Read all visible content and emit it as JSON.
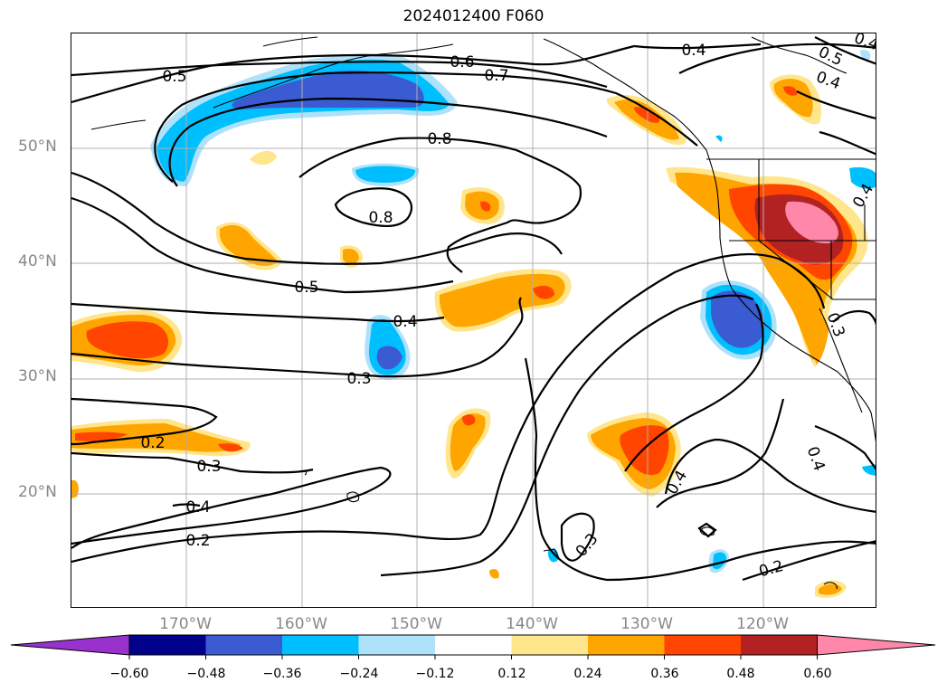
{
  "title": "2024012400 F060",
  "lat_labels": [
    "50°N",
    "40°N",
    "30°N",
    "20°N"
  ],
  "lon_labels": [
    "170°W",
    "160°W",
    "150°W",
    "140°W",
    "130°W",
    "120°W"
  ],
  "contour_labels": [
    "0.5",
    "0.6",
    "0.7",
    "0.8",
    "0.8",
    "0.5",
    "0.4",
    "0.3",
    "0.2",
    "0.3",
    "0.4",
    "0.2",
    "0.4",
    "0.4",
    "0.5",
    "0.4",
    "0.4",
    "0.3",
    "0.4",
    "0.3",
    "0.2",
    "0.4"
  ],
  "colorbar": {
    "ticks": [
      "−0.60",
      "−0.48",
      "−0.36",
      "−0.24",
      "−0.12",
      "0.12",
      "0.24",
      "0.36",
      "0.48",
      "0.60"
    ],
    "colors": [
      "#9932cc",
      "#00008b",
      "#3a5bd1",
      "#00bfff",
      "#aee2fa",
      "#ffffff",
      "#ffe68c",
      "#ffa500",
      "#ff4500",
      "#b22222",
      "#ff88aa"
    ]
  }
}
